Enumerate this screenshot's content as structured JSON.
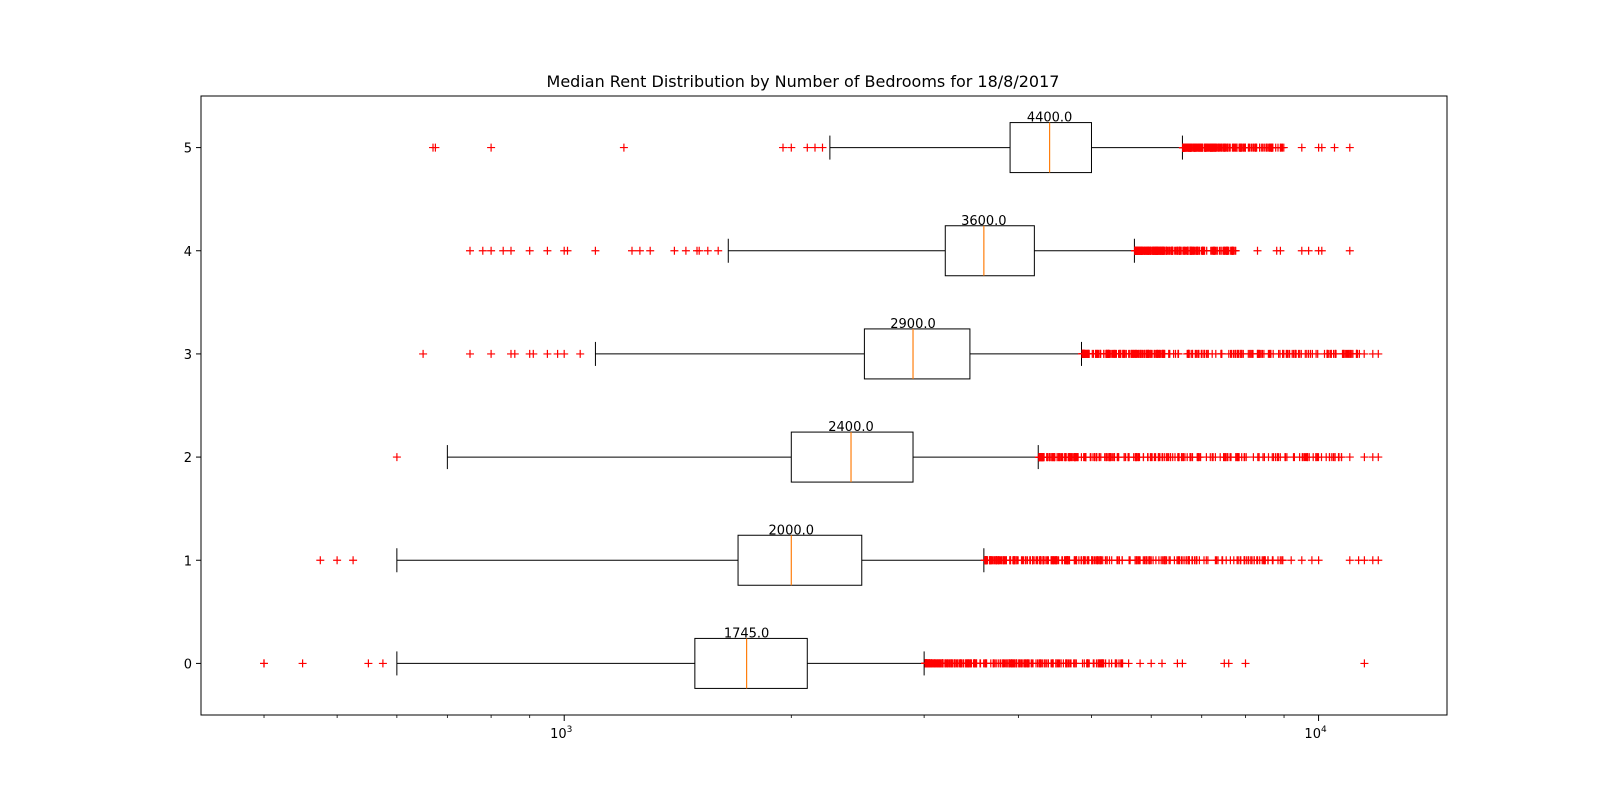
{
  "chart_data": {
    "type": "boxplot",
    "orientation": "horizontal",
    "title": "Median Rent Distribution by Number of Bedrooms for 18/8/2017",
    "xlabel": "",
    "ylabel": "",
    "xscale": "log",
    "xlim": [
      330,
      14800
    ],
    "ylim": [
      -0.5,
      5.5
    ],
    "x_major_ticks": [
      {
        "value": 1000,
        "base": "10",
        "exp": "3"
      },
      {
        "value": 10000,
        "base": "10",
        "exp": "4"
      }
    ],
    "grid": false,
    "colors": {
      "box": "#000000",
      "median": "#ff7f0e",
      "outlier": "#ff0000"
    },
    "series": [
      {
        "category": "0",
        "whisker_low": 600,
        "q1": 1490,
        "median": 1745,
        "q3": 2100,
        "whisker_high": 3000,
        "median_label": "1745.0",
        "outliers_low": [
          400,
          400,
          450,
          550,
          575
        ],
        "outliers_high_range": [
          3010,
          5500
        ],
        "outliers_high_extra": [
          5600,
          5800,
          6000,
          6200,
          6500,
          6600,
          7500,
          7600,
          8000,
          11500
        ]
      },
      {
        "category": "1",
        "whisker_low": 600,
        "q1": 1700,
        "median": 2000,
        "q3": 2480,
        "whisker_high": 3600,
        "median_label": "2000.0",
        "outliers_low": [
          475,
          500,
          525
        ],
        "outliers_high_range": [
          3610,
          9000
        ],
        "outliers_high_extra": [
          9200,
          9500,
          9800,
          10000,
          11000,
          11300,
          11500,
          11800,
          12000
        ]
      },
      {
        "category": "2",
        "whisker_low": 700,
        "q1": 2000,
        "median": 2400,
        "q3": 2900,
        "whisker_high": 4250,
        "median_label": "2400.0",
        "outliers_low": [
          600
        ],
        "outliers_high_range": [
          4260,
          10800
        ],
        "outliers_high_extra": [
          11000,
          11500,
          11800,
          12000
        ]
      },
      {
        "category": "3",
        "whisker_low": 1100,
        "q1": 2500,
        "median": 2900,
        "q3": 3450,
        "whisker_high": 4850,
        "median_label": "2900.0",
        "outliers_low": [
          650,
          750,
          800,
          850,
          860,
          900,
          910,
          950,
          980,
          1000,
          1050
        ],
        "outliers_high_range": [
          4860,
          11500
        ],
        "outliers_high_extra": [
          11800,
          12000
        ]
      },
      {
        "category": "4",
        "whisker_low": 1650,
        "q1": 3200,
        "median": 3600,
        "q3": 4200,
        "whisker_high": 5700,
        "median_label": "3600.0",
        "outliers_low": [
          750,
          780,
          800,
          830,
          850,
          900,
          950,
          1000,
          1010,
          1100,
          1230,
          1260,
          1300,
          1400,
          1450,
          1500,
          1510,
          1550,
          1600
        ],
        "outliers_high_range": [
          5710,
          7800
        ],
        "outliers_high_extra": [
          8300,
          8800,
          8900,
          9500,
          9700,
          10000,
          10100,
          11000
        ]
      },
      {
        "category": "5",
        "whisker_low": 2250,
        "q1": 3900,
        "median": 4400,
        "q3": 5000,
        "whisker_high": 6600,
        "median_label": "4400.0",
        "outliers_low": [
          670,
          675,
          800,
          1200,
          1950,
          2000,
          2100,
          2150,
          2200
        ],
        "outliers_high_range": [
          6610,
          9000
        ],
        "outliers_high_extra": [
          9500,
          10000,
          10100,
          10500,
          11000
        ]
      }
    ]
  }
}
